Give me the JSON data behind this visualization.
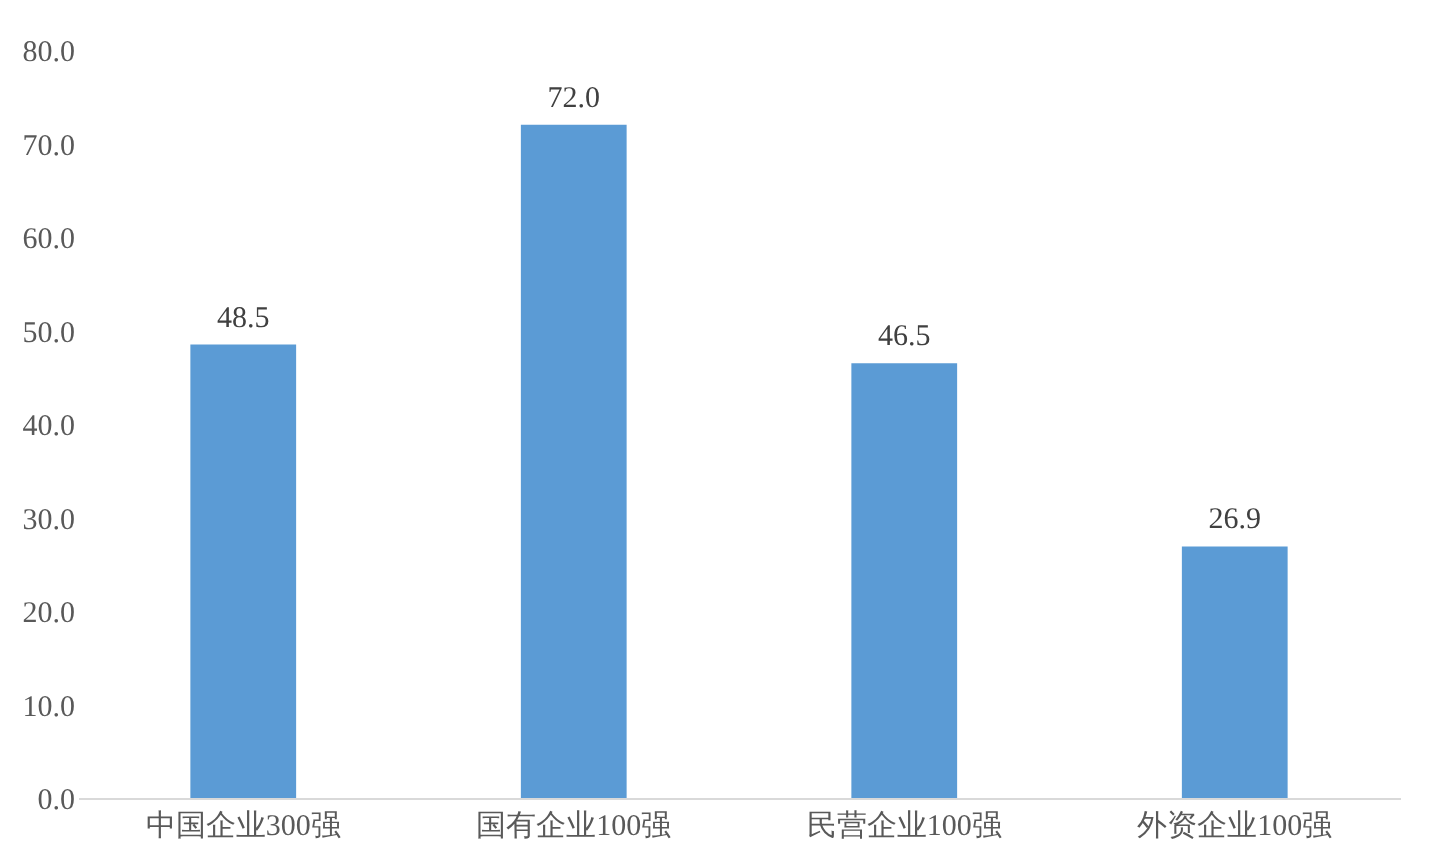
{
  "chart_data": {
    "type": "bar",
    "categories": [
      "中国企业300强",
      "国有企业100强",
      "民营企业100强",
      "外资企业100强"
    ],
    "values": [
      48.5,
      72.0,
      46.5,
      26.9
    ],
    "color": "#5b9bd5",
    "value_labels": [
      "48.5",
      "72.0",
      "46.5",
      "26.9"
    ],
    "ylim": [
      0,
      80
    ],
    "yticks": [
      {
        "value": 0,
        "label": "0.0"
      },
      {
        "value": 10,
        "label": "10.0"
      },
      {
        "value": 20,
        "label": "20.0"
      },
      {
        "value": 30,
        "label": "30.0"
      },
      {
        "value": 40,
        "label": "40.0"
      },
      {
        "value": 50,
        "label": "50.0"
      },
      {
        "value": 60,
        "label": "60.0"
      },
      {
        "value": 70,
        "label": "70.0"
      },
      {
        "value": 80,
        "label": "80.0"
      }
    ],
    "grid": false
  }
}
